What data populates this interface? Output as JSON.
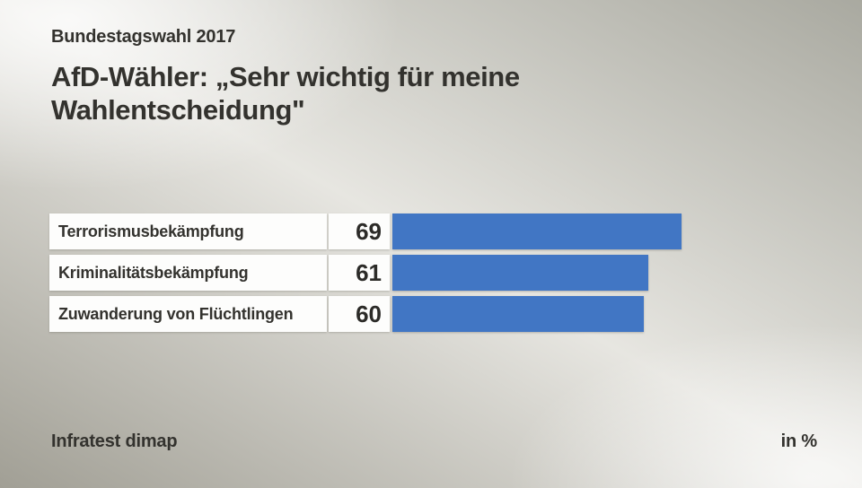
{
  "header": {
    "kicker": "Bundestagswahl 2017",
    "title": "AfD-Wähler: „Sehr wichtig für meine Wahlentscheidung\""
  },
  "chart_data": {
    "type": "bar",
    "orientation": "horizontal",
    "title": "AfD-Wähler: „Sehr wichtig für meine Wahlentscheidung\"",
    "categories": [
      "Terrorismusbekämpfung",
      "Kriminalitätsbekämpfung",
      "Zuwanderung von Flüchtlingen"
    ],
    "values": [
      69,
      61,
      60
    ],
    "unit": "%",
    "xlim": [
      0,
      100
    ],
    "grid": false,
    "legend": false,
    "bar_color": "#4176c4",
    "label_box_color": "#fdfdfc"
  },
  "footer": {
    "source": "Infratest dimap",
    "unit_label": "in %"
  }
}
